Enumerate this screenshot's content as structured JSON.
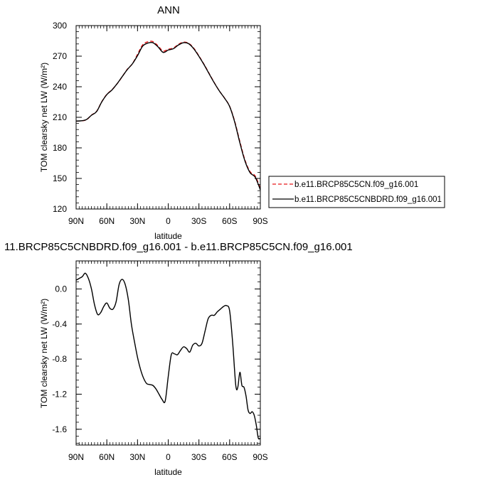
{
  "chart_data": [
    {
      "type": "line",
      "title": "ANN",
      "xlabel": "latitude",
      "ylabel": "TOM clearsky net LW (W/m²)",
      "xlim": [
        -90,
        90
      ],
      "ylim": [
        120,
        300
      ],
      "xticks": [
        -90,
        -60,
        -30,
        0,
        30,
        60,
        90
      ],
      "xtick_labels": [
        "90N",
        "60N",
        "30N",
        "0",
        "30S",
        "60S",
        "90S"
      ],
      "yticks": [
        120,
        150,
        180,
        210,
        240,
        270,
        300
      ],
      "ytick_labels": [
        "120",
        "150",
        "180",
        "210",
        "240",
        "270",
        "300"
      ],
      "legend_position": "right",
      "series": [
        {
          "name": "b.e11.BRCP85C5CN.f09_g16.001",
          "color": "#e8191b",
          "dash": "dashed",
          "x": [
            -90,
            -85,
            -80,
            -75,
            -70,
            -65,
            -60,
            -55,
            -50,
            -45,
            -40,
            -35,
            -30,
            -25,
            -20,
            -15,
            -10,
            -5,
            0,
            5,
            10,
            15,
            20,
            25,
            30,
            35,
            40,
            45,
            50,
            55,
            60,
            65,
            70,
            75,
            80,
            85,
            90
          ],
          "values": [
            206.2,
            206.5,
            207.5,
            212.2,
            215.9,
            225.2,
            232.5,
            237.0,
            242.8,
            249.8,
            257.1,
            262.6,
            271.8,
            281.1,
            284.1,
            284.3,
            280.2,
            275.0,
            276.8,
            278.0,
            281.6,
            283.8,
            282.6,
            277.8,
            270.2,
            262.0,
            253.0,
            244.0,
            235.8,
            228.9,
            220.8,
            205.9,
            186.2,
            168.0,
            156.6,
            152.4,
            140.3
          ]
        },
        {
          "name": "b.e11.BRCP85C5CNBDRD.f09_g16.001",
          "color": "#000000",
          "dash": "solid",
          "x": [
            -90,
            -85,
            -80,
            -75,
            -70,
            -65,
            -60,
            -55,
            -50,
            -45,
            -40,
            -35,
            -30,
            -25,
            -20,
            -15,
            -10,
            -5,
            0,
            5,
            10,
            15,
            20,
            25,
            30,
            35,
            40,
            45,
            50,
            55,
            60,
            65,
            70,
            75,
            80,
            85,
            90
          ],
          "values": [
            206.3,
            206.6,
            207.7,
            212.0,
            215.6,
            225.0,
            232.3,
            236.8,
            242.9,
            249.9,
            256.8,
            262.5,
            270.5,
            279.8,
            282.8,
            283.2,
            279.2,
            273.7,
            276.0,
            277.3,
            281.0,
            283.2,
            282.2,
            277.2,
            269.8,
            261.6,
            252.6,
            243.8,
            235.8,
            228.8,
            220.6,
            205.2,
            185.0,
            167.0,
            155.6,
            151.2,
            138.8
          ]
        }
      ]
    },
    {
      "type": "line",
      "title": "11.BRCP85C5CNBDRD.f09_g16.001 - b.e11.BRCP85C5CN.f09_g16.001",
      "xlabel": "latitude",
      "ylabel": "TOM clearsky net LW (W/m²)",
      "xlim": [
        -90,
        90
      ],
      "ylim": [
        -1.78,
        0.32
      ],
      "xticks": [
        -90,
        -60,
        -30,
        0,
        30,
        60,
        90
      ],
      "xtick_labels": [
        "90N",
        "60N",
        "30N",
        "0",
        "30S",
        "60S",
        "90S"
      ],
      "yticks": [
        -1.6,
        -1.2,
        -0.8,
        -0.4,
        0.0
      ],
      "ytick_labels": [
        "-1.6",
        "-1.2",
        "-0.8",
        "-0.4",
        "0.0"
      ],
      "series": [
        {
          "color": "#000000",
          "dash": "solid",
          "x": [
            -90,
            -87,
            -84,
            -81,
            -78,
            -75,
            -72,
            -69,
            -66,
            -63,
            -60,
            -57,
            -54,
            -51,
            -48,
            -45,
            -42,
            -39,
            -36,
            -33,
            -30,
            -27,
            -24,
            -21,
            -18,
            -15,
            -12,
            -9,
            -6,
            -3,
            0,
            3,
            6,
            9,
            12,
            15,
            18,
            21,
            24,
            27,
            30,
            33,
            36,
            39,
            42,
            45,
            48,
            51,
            54,
            57,
            60,
            63,
            66,
            68,
            70,
            72,
            74,
            76,
            78,
            80,
            82,
            84,
            86,
            88,
            90
          ],
          "values": [
            0.1,
            0.12,
            0.14,
            0.18,
            0.12,
            0.0,
            -0.18,
            -0.29,
            -0.27,
            -0.2,
            -0.16,
            -0.22,
            -0.23,
            -0.15,
            0.05,
            0.11,
            0.05,
            -0.12,
            -0.4,
            -0.6,
            -0.78,
            -0.92,
            -1.02,
            -1.08,
            -1.09,
            -1.1,
            -1.14,
            -1.2,
            -1.26,
            -1.28,
            -1.0,
            -0.75,
            -0.74,
            -0.75,
            -0.7,
            -0.66,
            -0.68,
            -0.72,
            -0.64,
            -0.62,
            -0.65,
            -0.62,
            -0.48,
            -0.34,
            -0.3,
            -0.3,
            -0.26,
            -0.23,
            -0.2,
            -0.19,
            -0.25,
            -0.62,
            -1.1,
            -1.12,
            -0.95,
            -1.1,
            -1.12,
            -1.22,
            -1.38,
            -1.42,
            -1.4,
            -1.44,
            -1.55,
            -1.7,
            -1.7
          ]
        }
      ]
    }
  ],
  "legend_lines": [
    "b.e11.BRCP85C5CN.f09_g16.001",
    "b.e11.BRCP85C5CNBDRD.f09_g16.001"
  ]
}
